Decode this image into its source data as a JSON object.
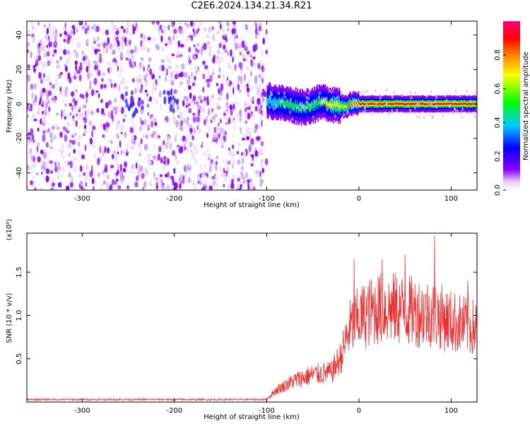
{
  "chart_title": "C2E6.2024.134.21.34.R21",
  "chart_data": [
    {
      "type": "heatmap",
      "xlabel": "Height of straight line (km)",
      "ylabel": "Frequency (Hz)",
      "xlim": [
        -360,
        128
      ],
      "ylim": [
        -50,
        48
      ],
      "xticks": [
        -300,
        -200,
        -100,
        0,
        100
      ],
      "yticks": [
        -40,
        -20,
        0,
        20,
        40
      ],
      "colorbar": {
        "label": "Normalized spectral amplitude",
        "range": [
          0.0,
          1.0
        ],
        "ticks": [
          0.0,
          0.2,
          0.4,
          0.6,
          0.8
        ],
        "tick_labels": [
          "0.0",
          "0.2",
          "0.4",
          "0.6",
          "0.8"
        ],
        "colormap": [
          "#ffffff",
          "#e6ccff",
          "#8c00ff",
          "#0000ff",
          "#00c8ff",
          "#00ff00",
          "#ffff00",
          "#ff8000",
          "#ff0000",
          "#ff0080"
        ]
      },
      "noise_region": {
        "x_range": [
          -360,
          -100
        ],
        "y_range": [
          -50,
          48
        ],
        "amplitude": [
          0.0,
          0.25
        ]
      },
      "signal_centerline": [
        {
          "x": -100,
          "y": 2
        },
        {
          "x": -80,
          "y": 0
        },
        {
          "x": -60,
          "y": -2
        },
        {
          "x": -40,
          "y": 1
        },
        {
          "x": -20,
          "y": -1
        },
        {
          "x": 0,
          "y": 0
        },
        {
          "x": 50,
          "y": 0
        },
        {
          "x": 128,
          "y": 0
        }
      ],
      "signal_peak_amplitude": [
        {
          "x": -100,
          "y": 0.35
        },
        {
          "x": -60,
          "y": 0.45
        },
        {
          "x": -20,
          "y": 0.6
        },
        {
          "x": 0,
          "y": 0.85
        },
        {
          "x": 128,
          "y": 0.9
        }
      ]
    },
    {
      "type": "line",
      "xlabel": "Height of straight line (km)",
      "ylabel": "SNR (10 * v/v)",
      "multiplier": "(x10⁴)",
      "xlim": [
        -360,
        128
      ],
      "ylim": [
        0,
        1.95
      ],
      "xticks": [
        -300,
        -200,
        -100,
        0,
        100
      ],
      "yticks": [
        0.5,
        1.0,
        1.5
      ],
      "ytick_labels": [
        "0.5",
        "1.0",
        "1.5"
      ],
      "line_color": "#f03030",
      "envelope": [
        {
          "x": -360,
          "y": 0.03
        },
        {
          "x": -100,
          "y": 0.03
        },
        {
          "x": -90,
          "y": 0.12
        },
        {
          "x": -70,
          "y": 0.22
        },
        {
          "x": -50,
          "y": 0.28
        },
        {
          "x": -30,
          "y": 0.3
        },
        {
          "x": -20,
          "y": 0.45
        },
        {
          "x": -10,
          "y": 0.75
        },
        {
          "x": 0,
          "y": 0.85
        },
        {
          "x": 20,
          "y": 0.95
        },
        {
          "x": 40,
          "y": 0.95
        },
        {
          "x": 60,
          "y": 0.92
        },
        {
          "x": 80,
          "y": 0.9
        },
        {
          "x": 100,
          "y": 0.82
        },
        {
          "x": 115,
          "y": 0.78
        },
        {
          "x": 128,
          "y": 0.75
        }
      ],
      "peaks": [
        {
          "x": -5,
          "y": 1.65
        },
        {
          "x": 25,
          "y": 1.65
        },
        {
          "x": 50,
          "y": 1.7
        },
        {
          "x": 82,
          "y": 1.92
        },
        {
          "x": 118,
          "y": 1.4
        }
      ]
    }
  ]
}
